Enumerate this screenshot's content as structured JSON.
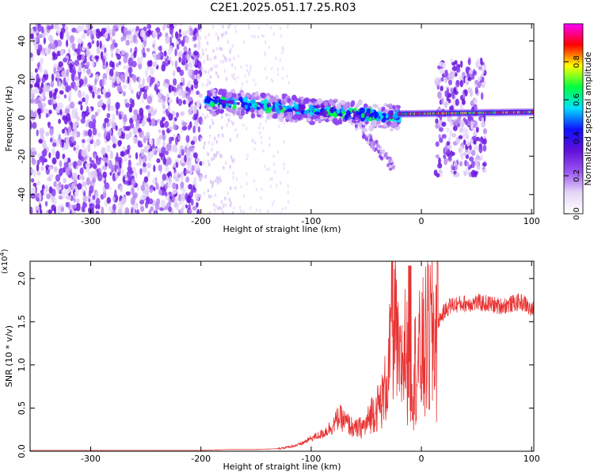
{
  "title": "C2E1.2025.051.17.25.R03",
  "colorbar": {
    "label": "Normalized spectral amplitude",
    "ticks": [
      "0.0",
      "0.2",
      "0.4",
      "0.6",
      "0.8"
    ],
    "tick_values": [
      0.0,
      0.2,
      0.4,
      0.6,
      0.8
    ],
    "range": [
      0,
      1
    ]
  },
  "chart_data": [
    {
      "type": "heatmap",
      "title": "",
      "xlabel": "Height of straight line (km)",
      "ylabel": "Frequency (Hz)",
      "xlim": [
        -355,
        102
      ],
      "ylim": [
        -50,
        49
      ],
      "xticks": [
        "-300",
        "-200",
        "-100",
        "0",
        "100"
      ],
      "xtick_values": [
        -300,
        -200,
        -100,
        0,
        100
      ],
      "yticks": [
        "-40",
        "-20",
        "0",
        "20",
        "40"
      ],
      "ytick_values": [
        -40,
        -20,
        0,
        20,
        40
      ],
      "colormap": [
        "#ffffff",
        "#e6d6f7",
        "#9a55f0",
        "#6010d8",
        "#1010ff",
        "#00e0ff",
        "#00ff40",
        "#ffff00",
        "#ff0000",
        "#ff00ff"
      ],
      "regions": [
        {
          "name": "broadband noise",
          "x": [
            -355,
            -200
          ],
          "freq": [
            -50,
            49
          ],
          "amplitude": 0.15
        },
        {
          "name": "fading noise",
          "x": [
            -200,
            -170
          ],
          "freq": [
            -50,
            49
          ],
          "amplitude": 0.05
        },
        {
          "name": "signal band",
          "x": [
            -195,
            -20
          ],
          "freq_center": [
            9,
            0
          ],
          "amplitude": 0.45
        },
        {
          "name": "tone",
          "x": [
            -20,
            102
          ],
          "freq_center": [
            2,
            3
          ],
          "amplitude": 0.9
        },
        {
          "name": "noise burst",
          "x": [
            13,
            58
          ],
          "freq": [
            -30,
            30
          ],
          "amplitude": 0.2
        }
      ]
    },
    {
      "type": "line",
      "title": "",
      "xlabel": "Height of straight line (km)",
      "ylabel": "SNR (10 * v/v)",
      "yscale_note": "(x10",
      "yscale_exp": "4",
      "xlim": [
        -355,
        102
      ],
      "ylim": [
        0,
        2.2
      ],
      "xticks": [
        "-300",
        "-200",
        "-100",
        "0",
        "100"
      ],
      "xtick_values": [
        -300,
        -200,
        -100,
        0,
        100
      ],
      "yticks": [
        "0.0",
        "0.5",
        "1.0",
        "1.5",
        "2.0"
      ],
      "ytick_values": [
        0.0,
        0.5,
        1.0,
        1.5,
        2.0
      ],
      "series": [
        {
          "color": "#e83232",
          "x": [
            -355,
            -300,
            -250,
            -200,
            -175,
            -150,
            -130,
            -120,
            -110,
            -100,
            -90,
            -80,
            -75,
            -70,
            -60,
            -50,
            -45,
            -40,
            -35,
            -30,
            -25,
            -20,
            -15,
            -10,
            -5,
            0,
            5,
            10,
            15,
            20,
            25,
            30,
            40,
            50,
            60,
            70,
            80,
            90,
            95,
            100,
            102
          ],
          "y": [
            0.01,
            0.01,
            0.01,
            0.01,
            0.02,
            0.02,
            0.03,
            0.05,
            0.08,
            0.15,
            0.2,
            0.3,
            0.4,
            0.35,
            0.25,
            0.3,
            0.45,
            0.5,
            0.6,
            0.9,
            1.6,
            0.9,
            1.2,
            0.8,
            1.0,
            1.1,
            1.25,
            1.35,
            1.5,
            1.6,
            1.68,
            1.7,
            1.71,
            1.72,
            1.71,
            1.68,
            1.7,
            1.73,
            1.7,
            1.62,
            1.65
          ]
        }
      ]
    }
  ]
}
